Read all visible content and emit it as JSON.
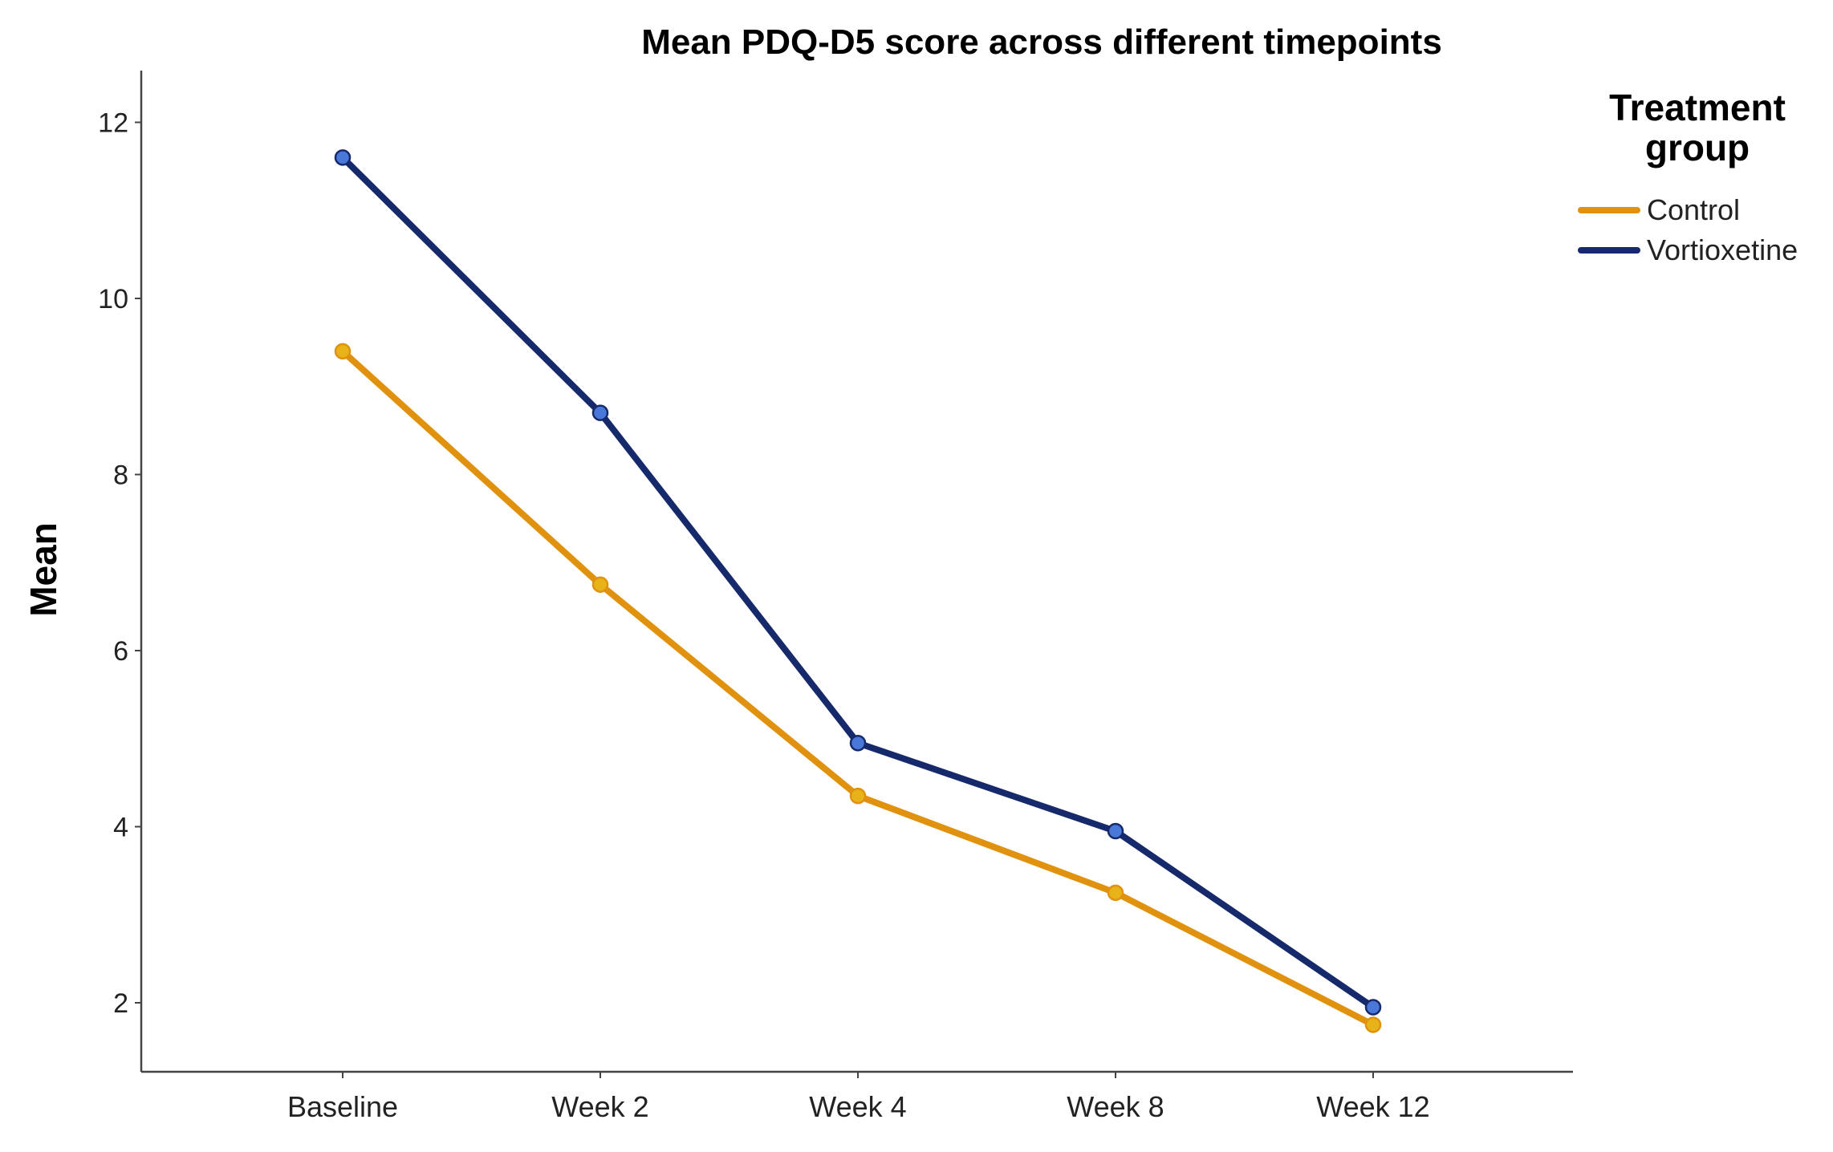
{
  "chart_data": {
    "type": "line",
    "title": "Mean PDQ-D5 score across different timepoints",
    "xlabel": "",
    "ylabel": "Mean",
    "categories": [
      "Baseline",
      "Week 2",
      "Week 4",
      "Week 8",
      "Week 12"
    ],
    "yticks": [
      2,
      4,
      6,
      8,
      10,
      12
    ],
    "ylim": [
      1.2,
      12.6
    ],
    "grid": false,
    "legend": {
      "title": "Treatment group",
      "placement": "right"
    },
    "series": [
      {
        "name": "Control",
        "values": [
          9.4,
          6.75,
          4.35,
          3.25,
          1.75
        ],
        "line_color": "#E0920F",
        "marker_color": "#E8B219"
      },
      {
        "name": "Vortioxetine",
        "values": [
          11.6,
          8.7,
          4.95,
          3.95,
          1.95
        ],
        "line_color": "#15296B",
        "marker_color": "#4A78D8"
      }
    ]
  }
}
